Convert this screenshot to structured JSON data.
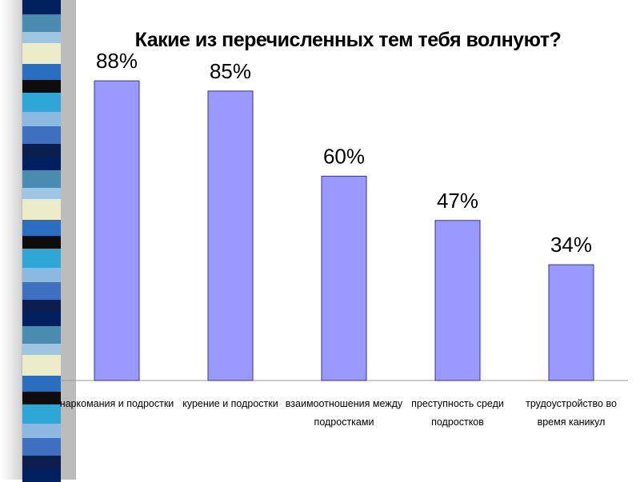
{
  "decoration": {
    "colors": [
      "#00215e",
      "#4a8bb0",
      "#9fc6e0",
      "#ececc8",
      "#2a6ec2",
      "#0d0d0d",
      "#2ea7d7",
      "#8cb9e2",
      "#3f6fbf",
      "#0a1f4d"
    ]
  },
  "chart_data": {
    "type": "bar",
    "title": "Какие из перечисленных тем тебя волнуют?",
    "categories": [
      [
        "наркомания и подростки"
      ],
      [
        "курение и подростки"
      ],
      [
        "взаимоотношения между",
        "подростками"
      ],
      [
        "преступность среди",
        "подростков"
      ],
      [
        "трудоустройство во",
        "время каникул"
      ]
    ],
    "values": [
      88,
      85,
      60,
      47,
      34
    ],
    "data_labels": [
      "88%",
      "85%",
      "60%",
      "47%",
      "34%"
    ],
    "ylim": [
      0,
      100
    ],
    "grid": false,
    "legend": "none",
    "bar_color": "#9999ff",
    "bar_border_color": "#333399"
  }
}
